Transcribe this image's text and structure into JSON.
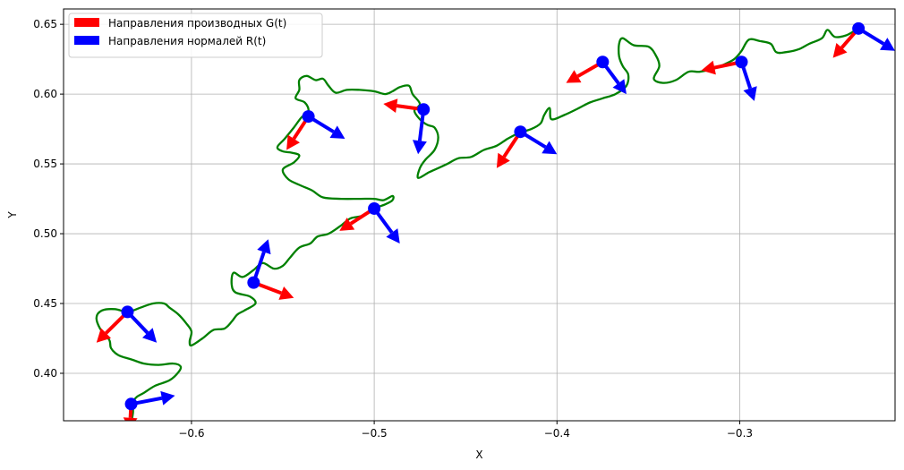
{
  "chart_data": {
    "type": "line",
    "title": "",
    "xlabel": "X",
    "ylabel": "Y",
    "xlim": [
      -0.67,
      -0.215
    ],
    "ylim": [
      0.366,
      0.661
    ],
    "xticks": [
      -0.6,
      -0.5,
      -0.4,
      -0.3
    ],
    "xtick_labels": [
      "−0.6",
      "−0.5",
      "−0.4",
      "−0.3"
    ],
    "yticks": [
      0.4,
      0.45,
      0.5,
      0.55,
      0.6,
      0.65
    ],
    "ytick_labels": [
      "0.40",
      "0.45",
      "0.50",
      "0.55",
      "0.60",
      "0.65"
    ],
    "grid": true,
    "legend_position": "top-left",
    "colors": {
      "curve": "#008000",
      "derivative": "#ff0000",
      "normal": "#0000ff",
      "point": "#0000ff",
      "grid": "#b0b0b0"
    },
    "curve": [
      [
        -0.633,
        0.364
      ],
      [
        -0.632,
        0.372
      ],
      [
        -0.632,
        0.379
      ],
      [
        -0.63,
        0.383
      ],
      [
        -0.626,
        0.386
      ],
      [
        -0.62,
        0.391
      ],
      [
        -0.612,
        0.395
      ],
      [
        -0.607,
        0.401
      ],
      [
        -0.606,
        0.405
      ],
      [
        -0.61,
        0.407
      ],
      [
        -0.618,
        0.406
      ],
      [
        -0.626,
        0.407
      ],
      [
        -0.633,
        0.41
      ],
      [
        -0.64,
        0.413
      ],
      [
        -0.644,
        0.418
      ],
      [
        -0.645,
        0.424
      ],
      [
        -0.65,
        0.432
      ],
      [
        -0.652,
        0.44
      ],
      [
        -0.649,
        0.445
      ],
      [
        -0.642,
        0.446
      ],
      [
        -0.635,
        0.444
      ],
      [
        -0.628,
        0.447
      ],
      [
        -0.621,
        0.45
      ],
      [
        -0.615,
        0.45
      ],
      [
        -0.612,
        0.447
      ],
      [
        -0.607,
        0.442
      ],
      [
        -0.603,
        0.436
      ],
      [
        -0.6,
        0.43
      ],
      [
        -0.601,
        0.423
      ],
      [
        -0.6,
        0.42
      ],
      [
        -0.594,
        0.425
      ],
      [
        -0.588,
        0.431
      ],
      [
        -0.582,
        0.432
      ],
      [
        -0.578,
        0.437
      ],
      [
        -0.575,
        0.442
      ],
      [
        -0.571,
        0.445
      ],
      [
        -0.565,
        0.45
      ],
      [
        -0.568,
        0.455
      ],
      [
        -0.576,
        0.458
      ],
      [
        -0.578,
        0.464
      ],
      [
        -0.577,
        0.472
      ],
      [
        -0.572,
        0.469
      ],
      [
        -0.566,
        0.474
      ],
      [
        -0.561,
        0.479
      ],
      [
        -0.555,
        0.475
      ],
      [
        -0.55,
        0.477
      ],
      [
        -0.546,
        0.483
      ],
      [
        -0.541,
        0.49
      ],
      [
        -0.535,
        0.493
      ],
      [
        -0.531,
        0.498
      ],
      [
        -0.525,
        0.5
      ],
      [
        -0.518,
        0.506
      ],
      [
        -0.513,
        0.511
      ],
      [
        -0.506,
        0.513
      ],
      [
        -0.5,
        0.518
      ],
      [
        -0.494,
        0.521
      ],
      [
        -0.49,
        0.524
      ],
      [
        -0.49,
        0.527
      ],
      [
        -0.495,
        0.524
      ],
      [
        -0.5,
        0.525
      ],
      [
        -0.508,
        0.525
      ],
      [
        -0.518,
        0.525
      ],
      [
        -0.528,
        0.526
      ],
      [
        -0.534,
        0.531
      ],
      [
        -0.541,
        0.535
      ],
      [
        -0.547,
        0.539
      ],
      [
        -0.55,
        0.546
      ],
      [
        -0.544,
        0.551
      ],
      [
        -0.541,
        0.556
      ],
      [
        -0.545,
        0.558
      ],
      [
        -0.55,
        0.559
      ],
      [
        -0.553,
        0.562
      ],
      [
        -0.549,
        0.568
      ],
      [
        -0.544,
        0.576
      ],
      [
        -0.54,
        0.583
      ],
      [
        -0.536,
        0.588
      ],
      [
        -0.538,
        0.594
      ],
      [
        -0.543,
        0.597
      ],
      [
        -0.541,
        0.603
      ],
      [
        -0.541,
        0.61
      ],
      [
        -0.537,
        0.613
      ],
      [
        -0.532,
        0.61
      ],
      [
        -0.528,
        0.611
      ],
      [
        -0.525,
        0.606
      ],
      [
        -0.521,
        0.601
      ],
      [
        -0.515,
        0.603
      ],
      [
        -0.508,
        0.603
      ],
      [
        -0.5,
        0.602
      ],
      [
        -0.494,
        0.6
      ],
      [
        -0.49,
        0.602
      ],
      [
        -0.486,
        0.605
      ],
      [
        -0.481,
        0.606
      ],
      [
        -0.479,
        0.6
      ],
      [
        -0.475,
        0.593
      ],
      [
        -0.478,
        0.588
      ],
      [
        -0.475,
        0.582
      ],
      [
        -0.471,
        0.578
      ],
      [
        -0.467,
        0.576
      ],
      [
        -0.465,
        0.569
      ],
      [
        -0.467,
        0.56
      ],
      [
        -0.472,
        0.553
      ],
      [
        -0.475,
        0.547
      ],
      [
        -0.476,
        0.54
      ],
      [
        -0.47,
        0.544
      ],
      [
        -0.465,
        0.547
      ],
      [
        -0.46,
        0.55
      ],
      [
        -0.454,
        0.554
      ],
      [
        -0.447,
        0.555
      ],
      [
        -0.44,
        0.56
      ],
      [
        -0.433,
        0.563
      ],
      [
        -0.427,
        0.568
      ],
      [
        -0.421,
        0.572
      ],
      [
        -0.414,
        0.575
      ],
      [
        -0.409,
        0.579
      ],
      [
        -0.407,
        0.585
      ],
      [
        -0.404,
        0.59
      ],
      [
        -0.403,
        0.582
      ],
      [
        -0.396,
        0.585
      ],
      [
        -0.388,
        0.59
      ],
      [
        -0.382,
        0.594
      ],
      [
        -0.375,
        0.597
      ],
      [
        -0.368,
        0.6
      ],
      [
        -0.362,
        0.606
      ],
      [
        -0.361,
        0.614
      ],
      [
        -0.364,
        0.62
      ],
      [
        -0.366,
        0.627
      ],
      [
        -0.366,
        0.636
      ],
      [
        -0.364,
        0.64
      ],
      [
        -0.358,
        0.635
      ],
      [
        -0.35,
        0.634
      ],
      [
        -0.346,
        0.628
      ],
      [
        -0.344,
        0.62
      ],
      [
        -0.347,
        0.611
      ],
      [
        -0.342,
        0.608
      ],
      [
        -0.335,
        0.61
      ],
      [
        -0.328,
        0.616
      ],
      [
        -0.322,
        0.616
      ],
      [
        -0.315,
        0.618
      ],
      [
        -0.309,
        0.621
      ],
      [
        -0.303,
        0.625
      ],
      [
        -0.299,
        0.631
      ],
      [
        -0.295,
        0.639
      ],
      [
        -0.289,
        0.638
      ],
      [
        -0.283,
        0.636
      ],
      [
        -0.28,
        0.63
      ],
      [
        -0.275,
        0.63
      ],
      [
        -0.268,
        0.632
      ],
      [
        -0.262,
        0.636
      ],
      [
        -0.255,
        0.64
      ],
      [
        -0.252,
        0.646
      ],
      [
        -0.248,
        0.641
      ],
      [
        -0.242,
        0.642
      ],
      [
        -0.236,
        0.646
      ],
      [
        -0.232,
        0.647
      ]
    ],
    "markers": [
      {
        "x": -0.633,
        "y": 0.378,
        "dx": -0.0008,
        "dy": -0.018,
        "nx": 0.024,
        "ny": 0.006
      },
      {
        "x": -0.635,
        "y": 0.444,
        "dx": -0.017,
        "dy": -0.022,
        "nx": 0.016,
        "ny": -0.022
      },
      {
        "x": -0.566,
        "y": 0.465,
        "dx": 0.022,
        "dy": -0.011,
        "nx": 0.008,
        "ny": 0.031
      },
      {
        "x": -0.5,
        "y": 0.518,
        "dx": -0.019,
        "dy": -0.016,
        "nx": 0.014,
        "ny": -0.025
      },
      {
        "x": -0.536,
        "y": 0.584,
        "dx": -0.012,
        "dy": -0.024,
        "nx": 0.02,
        "ny": -0.016
      },
      {
        "x": -0.473,
        "y": 0.589,
        "dx": -0.022,
        "dy": 0.004,
        "nx": -0.003,
        "ny": -0.032
      },
      {
        "x": -0.42,
        "y": 0.573,
        "dx": -0.013,
        "dy": -0.026,
        "nx": 0.02,
        "ny": -0.016
      },
      {
        "x": -0.375,
        "y": 0.623,
        "dx": -0.02,
        "dy": -0.015,
        "nx": 0.013,
        "ny": -0.023
      },
      {
        "x": -0.299,
        "y": 0.623,
        "dx": -0.022,
        "dy": -0.006,
        "nx": 0.007,
        "ny": -0.028
      },
      {
        "x": -0.235,
        "y": 0.647,
        "dx": -0.014,
        "dy": -0.021,
        "nx": 0.02,
        "ny": -0.016
      }
    ],
    "legend": [
      {
        "label": "Направления производных G(t)",
        "color": "#ff0000"
      },
      {
        "label": "Направления нормалей R(t)",
        "color": "#0000ff"
      }
    ]
  }
}
